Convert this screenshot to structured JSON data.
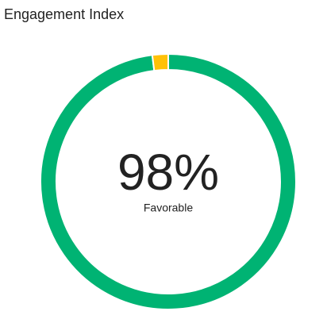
{
  "chart_data": {
    "type": "donut",
    "title": "Engagement Index",
    "categories": [
      "Favorable",
      null
    ],
    "values": [
      98,
      2
    ],
    "value_labels": [
      "98%",
      null
    ],
    "colors": [
      "#00b373",
      "#ffc107"
    ]
  }
}
